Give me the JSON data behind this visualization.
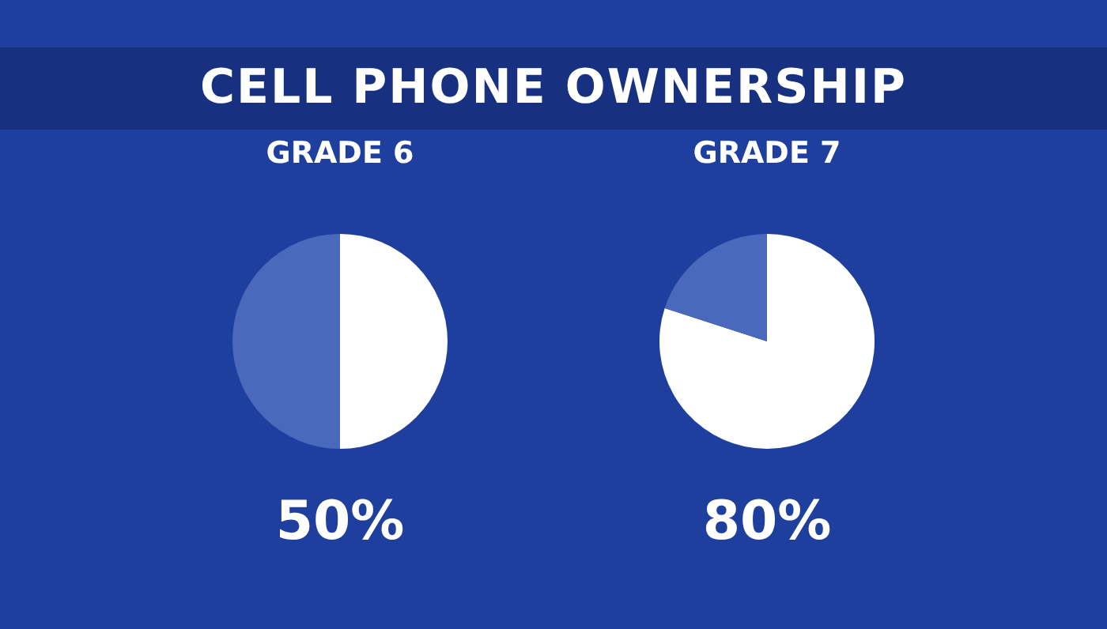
{
  "chart_data": [
    {
      "type": "other",
      "title": "CELL PHONE OWNERSHIP"
    },
    {
      "type": "pie",
      "title": "GRADE 6",
      "categories": [
        null,
        null
      ],
      "values": [
        50,
        50
      ],
      "colors": [
        "#ffffff",
        "#4a69bd"
      ],
      "value_labels": [
        "50%",
        null
      ]
    },
    {
      "type": "pie",
      "title": "GRADE 7",
      "categories": [
        null,
        null
      ],
      "values": [
        80,
        20
      ],
      "colors": [
        "#ffffff",
        "#4a69bd"
      ],
      "value_labels": [
        "80%",
        null
      ]
    }
  ]
}
